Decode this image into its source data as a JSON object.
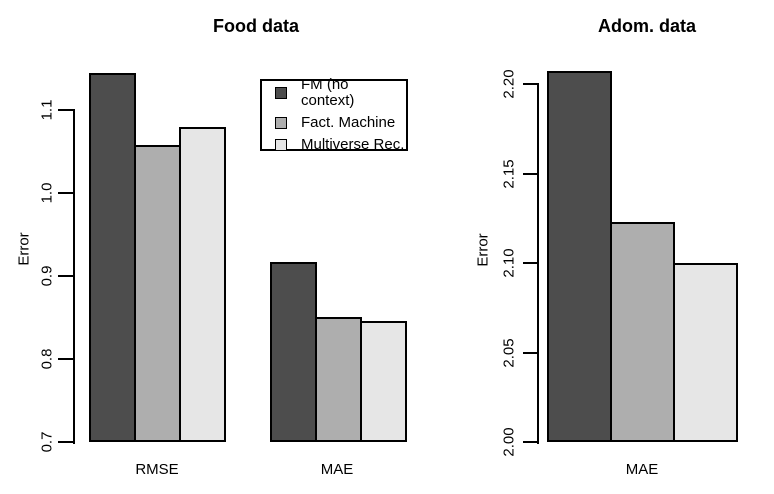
{
  "figure": {
    "background": "#ffffff",
    "series_colors": [
      "#4d4d4d",
      "#aeaeae",
      "#e6e6e6"
    ],
    "bar_border_color": "#000000",
    "text_color": "#000000"
  },
  "legend": {
    "entries": [
      {
        "label": "FM (no context)",
        "color": "#4d4d4d"
      },
      {
        "label": "Fact. Machine",
        "color": "#aeaeae"
      },
      {
        "label": "Multiverse Rec.",
        "color": "#e6e6e6"
      }
    ],
    "position": "top-right-of-left-plot",
    "border": true
  },
  "chart_data": [
    {
      "type": "bar",
      "title": "Food data",
      "xlabel": "",
      "ylabel": "Error",
      "ylim": [
        0.7,
        1.15
      ],
      "yticks": [
        0.7,
        0.8,
        0.9,
        1.0,
        1.1
      ],
      "ytick_labels": [
        "0.7",
        "0.8",
        "0.9",
        "1.0",
        "1.1"
      ],
      "categories": [
        "RMSE",
        "MAE"
      ],
      "series": [
        {
          "name": "FM (no context)",
          "values": [
            1.145,
            0.917
          ]
        },
        {
          "name": "Fact. Machine",
          "values": [
            1.058,
            0.851
          ]
        },
        {
          "name": "Multiverse Rec.",
          "values": [
            1.08,
            0.846
          ]
        }
      ],
      "grid": false,
      "legend_position": "top-right"
    },
    {
      "type": "bar",
      "title": "Adom. data",
      "xlabel": "",
      "ylabel": "Error",
      "ylim": [
        2.0,
        2.21
      ],
      "yticks": [
        2.0,
        2.05,
        2.1,
        2.15,
        2.2
      ],
      "ytick_labels": [
        "2.00",
        "2.05",
        "2.10",
        "2.15",
        "2.20"
      ],
      "categories": [
        "MAE"
      ],
      "series": [
        {
          "name": "FM (no context)",
          "values": [
            2.207
          ]
        },
        {
          "name": "Fact. Machine",
          "values": [
            2.123
          ]
        },
        {
          "name": "Multiverse Rec.",
          "values": [
            2.1
          ]
        }
      ],
      "grid": false,
      "legend_position": "none"
    }
  ]
}
